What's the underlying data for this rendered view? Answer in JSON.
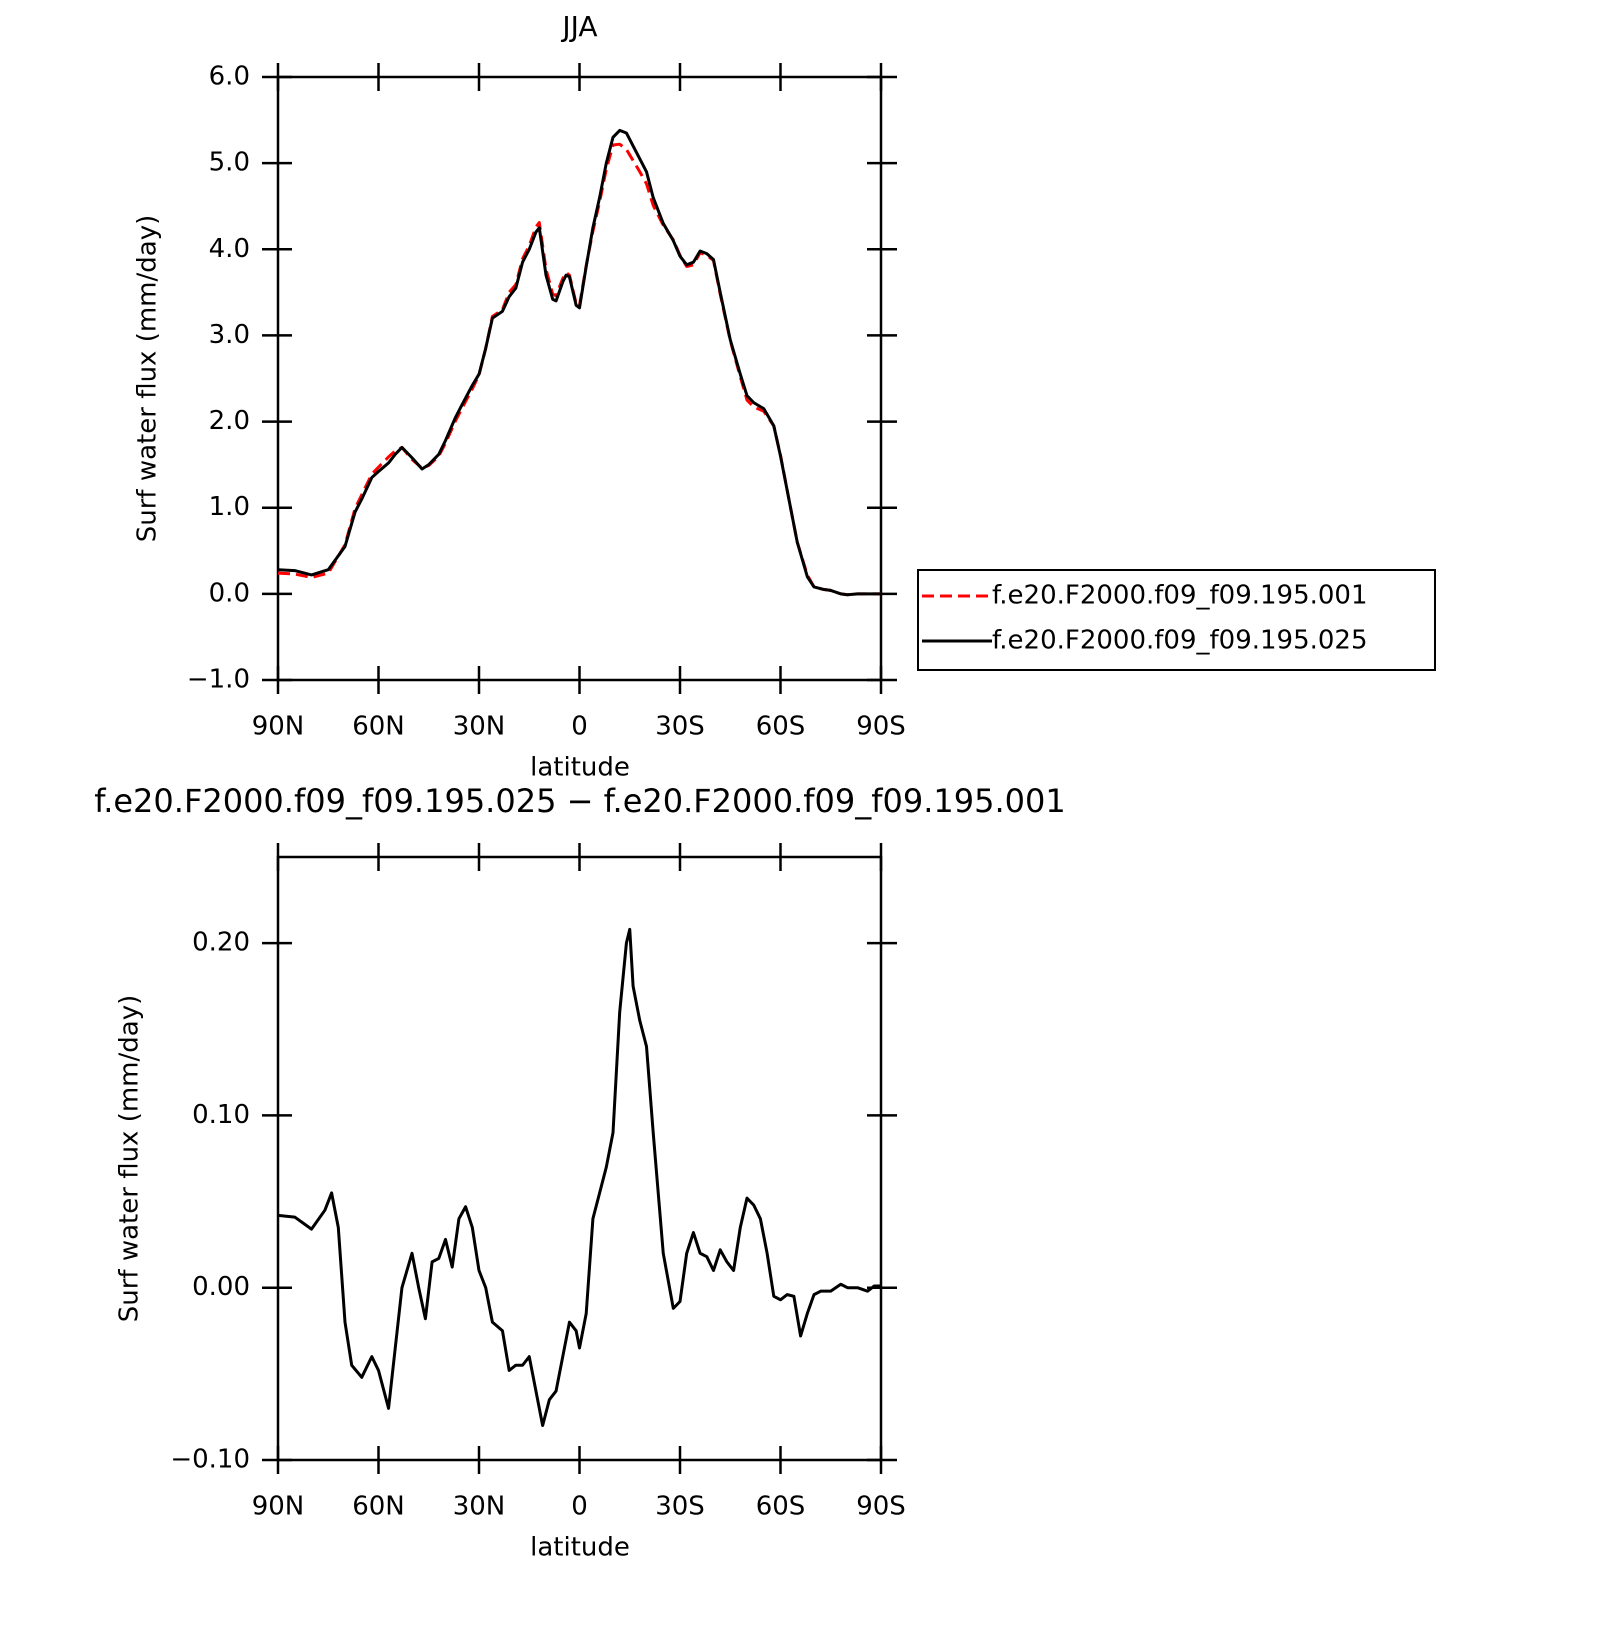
{
  "chart_data": [
    {
      "type": "line",
      "title": "JJA",
      "xlabel": "latitude",
      "ylabel": "Surf water flux (mm/day)",
      "xlim": [
        90,
        -90
      ],
      "ylim": [
        -1.0,
        6.0
      ],
      "xticks": [
        {
          "value": 90,
          "label": "90N"
        },
        {
          "value": 60,
          "label": "60N"
        },
        {
          "value": 30,
          "label": "30N"
        },
        0,
        {
          "value": -30,
          "label": "30S"
        },
        {
          "value": -60,
          "label": "60S"
        },
        {
          "value": -90,
          "label": "90S"
        }
      ],
      "yticks": [
        {
          "value": -1.0,
          "label": "−1.0"
        },
        {
          "value": 0.0,
          "label": "0.0"
        },
        {
          "value": 1.0,
          "label": "1.0"
        },
        {
          "value": 2.0,
          "label": "2.0"
        },
        {
          "value": 3.0,
          "label": "3.0"
        },
        {
          "value": 4.0,
          "label": "4.0"
        },
        {
          "value": 5.0,
          "label": "5.0"
        },
        {
          "value": 6.0,
          "label": "6.0"
        }
      ],
      "legend": "right",
      "x": [
        90,
        85,
        80,
        75,
        70,
        67,
        65,
        62,
        60,
        57,
        55,
        53,
        50,
        47,
        45,
        42,
        40,
        37,
        35,
        32,
        30,
        28,
        26,
        23,
        21,
        19,
        17,
        15,
        13,
        12,
        10,
        8,
        7,
        5,
        4,
        3,
        1,
        0,
        -2,
        -4,
        -6,
        -8,
        -10,
        -12,
        -14,
        -16,
        -18,
        -20,
        -22,
        -25,
        -28,
        -30,
        -32,
        -34,
        -36,
        -38,
        -40,
        -42,
        -45,
        -48,
        -50,
        -52,
        -55,
        -58,
        -60,
        -63,
        -65,
        -68,
        -70,
        -73,
        -75,
        -78,
        -80,
        -83,
        -85,
        -88,
        -90
      ],
      "series": [
        {
          "name": "f.e20.F2000.f09_f09.195.001",
          "color": "#ff0000",
          "dashed": true,
          "values": [
            0.24,
            0.23,
            0.19,
            0.24,
            0.57,
            0.99,
            1.15,
            1.39,
            1.47,
            1.59,
            1.66,
            1.7,
            1.56,
            1.46,
            1.49,
            1.6,
            1.75,
            2.01,
            2.16,
            2.38,
            2.54,
            2.85,
            3.22,
            3.3,
            3.5,
            3.59,
            3.89,
            4.04,
            4.26,
            4.31,
            3.77,
            3.48,
            3.46,
            3.66,
            3.73,
            3.7,
            3.37,
            3.35,
            3.81,
            4.21,
            4.55,
            4.93,
            5.21,
            5.22,
            5.16,
            5.03,
            4.9,
            4.76,
            4.51,
            4.28,
            4.11,
            3.93,
            3.8,
            3.82,
            3.96,
            3.93,
            3.87,
            3.48,
            2.94,
            2.52,
            2.25,
            2.17,
            2.12,
            1.95,
            1.61,
            1.0,
            0.6,
            0.22,
            0.08,
            0.05,
            0.04,
            0.0,
            -0.01,
            0.0,
            0.0,
            0.0,
            0.0
          ]
        },
        {
          "name": "f.e20.F2000.f09_f09.195.025",
          "color": "#000000",
          "dashed": false,
          "values": [
            0.28,
            0.27,
            0.22,
            0.28,
            0.55,
            0.95,
            1.1,
            1.35,
            1.42,
            1.52,
            1.62,
            1.7,
            1.58,
            1.45,
            1.5,
            1.62,
            1.78,
            2.05,
            2.2,
            2.42,
            2.55,
            2.85,
            3.2,
            3.28,
            3.45,
            3.55,
            3.85,
            4.0,
            4.2,
            4.25,
            3.7,
            3.42,
            3.4,
            3.62,
            3.7,
            3.68,
            3.35,
            3.32,
            3.8,
            4.25,
            4.6,
            5.0,
            5.3,
            5.38,
            5.35,
            5.2,
            5.05,
            4.9,
            4.6,
            4.3,
            4.1,
            3.92,
            3.82,
            3.85,
            3.98,
            3.95,
            3.88,
            3.5,
            2.95,
            2.55,
            2.3,
            2.22,
            2.15,
            1.95,
            1.6,
            1.0,
            0.6,
            0.2,
            0.08,
            0.05,
            0.04,
            0.0,
            -0.01,
            0.0,
            0.0,
            0.0,
            0.0
          ]
        }
      ]
    },
    {
      "type": "line",
      "title": "f.e20.F2000.f09_f09.195.025 − f.e20.F2000.f09_f09.195.001",
      "xlabel": "latitude",
      "ylabel": "Surf water flux (mm/day)",
      "xlim": [
        90,
        -90
      ],
      "ylim": [
        -0.1,
        0.25
      ],
      "xticks": [
        {
          "value": 90,
          "label": "90N"
        },
        {
          "value": 60,
          "label": "60N"
        },
        {
          "value": 30,
          "label": "30N"
        },
        0,
        {
          "value": -30,
          "label": "30S"
        },
        {
          "value": -60,
          "label": "60S"
        },
        {
          "value": -90,
          "label": "90S"
        }
      ],
      "yticks": [
        {
          "value": -0.1,
          "label": "−0.10"
        },
        {
          "value": 0.0,
          "label": "0.00"
        },
        {
          "value": 0.1,
          "label": "0.10"
        },
        {
          "value": 0.2,
          "label": "0.20"
        }
      ],
      "x": [
        90,
        85,
        80,
        76,
        74,
        72,
        70,
        68,
        65,
        62,
        60,
        57,
        55,
        53,
        50,
        48,
        46,
        44,
        42,
        40,
        38,
        36,
        34,
        32,
        30,
        28,
        26,
        23,
        21,
        19,
        17,
        15,
        13,
        11,
        9,
        7,
        5,
        3,
        1,
        0,
        -2,
        -4,
        -6,
        -8,
        -10,
        -12,
        -14,
        -15,
        -16,
        -18,
        -20,
        -22,
        -25,
        -28,
        -30,
        -32,
        -34,
        -36,
        -38,
        -40,
        -42,
        -44,
        -46,
        -48,
        -50,
        -52,
        -54,
        -56,
        -58,
        -60,
        -62,
        -64,
        -66,
        -68,
        -70,
        -72,
        -75,
        -78,
        -80,
        -83,
        -86,
        -88,
        -90
      ],
      "series": [
        {
          "color": "#000000",
          "dashed": false,
          "values": [
            0.042,
            0.041,
            0.034,
            0.045,
            0.055,
            0.035,
            -0.02,
            -0.045,
            -0.052,
            -0.04,
            -0.048,
            -0.07,
            -0.035,
            0.0,
            0.02,
            0.0,
            -0.018,
            0.015,
            0.017,
            0.028,
            0.012,
            0.04,
            0.047,
            0.035,
            0.01,
            0.0,
            -0.02,
            -0.025,
            -0.048,
            -0.045,
            -0.045,
            -0.04,
            -0.06,
            -0.08,
            -0.065,
            -0.06,
            -0.04,
            -0.02,
            -0.025,
            -0.035,
            -0.015,
            0.04,
            0.055,
            0.07,
            0.09,
            0.16,
            0.2,
            0.208,
            0.175,
            0.155,
            0.14,
            0.09,
            0.02,
            -0.012,
            -0.008,
            0.02,
            0.032,
            0.02,
            0.018,
            0.01,
            0.022,
            0.015,
            0.01,
            0.035,
            0.052,
            0.048,
            0.04,
            0.02,
            -0.005,
            -0.007,
            -0.004,
            -0.005,
            -0.028,
            -0.015,
            -0.004,
            -0.002,
            -0.002,
            0.002,
            0.0,
            0.0,
            -0.002,
            0.001,
            0.001
          ]
        }
      ]
    }
  ]
}
